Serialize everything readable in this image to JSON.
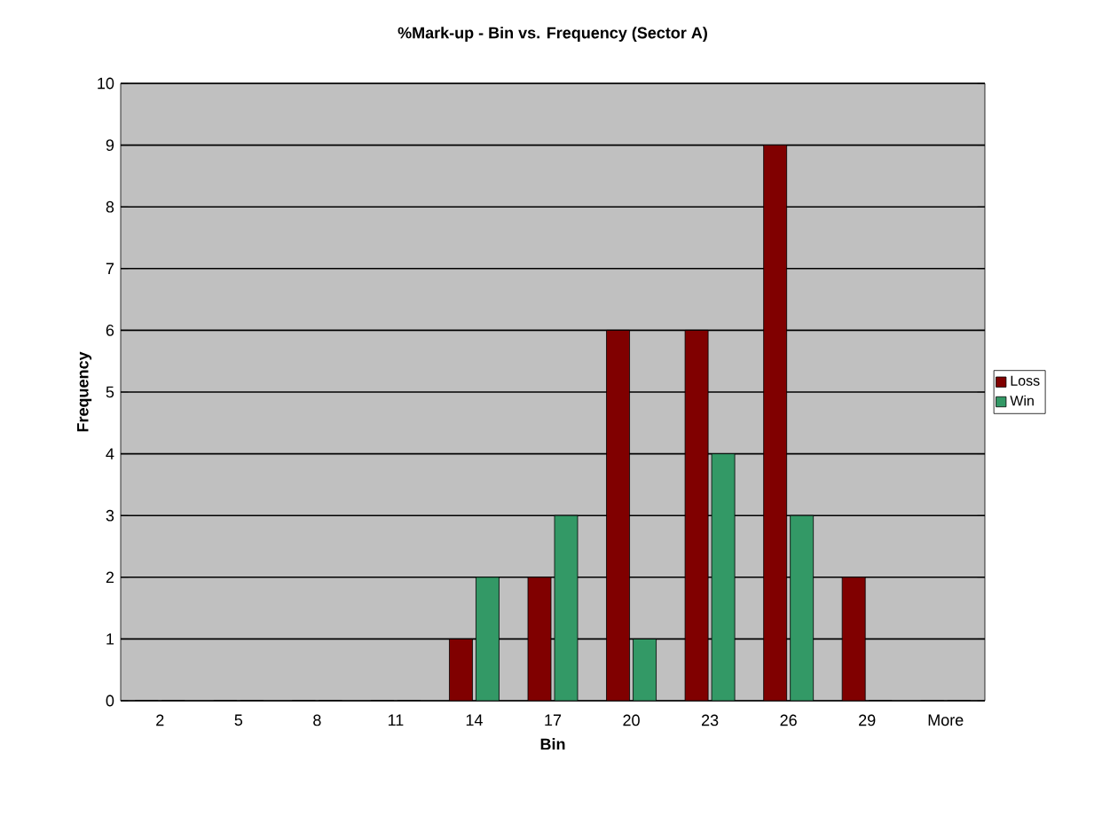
{
  "chart_data": {
    "type": "bar",
    "title": "%Mark-up - Bin vs. Frequency (Sector A)",
    "xlabel": "Bin",
    "ylabel": "Frequency",
    "categories": [
      "2",
      "5",
      "8",
      "11",
      "14",
      "17",
      "20",
      "23",
      "26",
      "29",
      "More"
    ],
    "series": [
      {
        "name": "Loss",
        "color": "#800000",
        "values": [
          0,
          0,
          0,
          0,
          1,
          2,
          6,
          6,
          9,
          2,
          0
        ]
      },
      {
        "name": "Win",
        "color": "#339966",
        "values": [
          0,
          0,
          0,
          0,
          2,
          3,
          1,
          4,
          3,
          0,
          0
        ]
      }
    ],
    "ylim": [
      0,
      10
    ],
    "yticks": [
      0,
      1,
      2,
      3,
      4,
      5,
      6,
      7,
      8,
      9,
      10
    ],
    "grid": "y",
    "legend": "right"
  }
}
